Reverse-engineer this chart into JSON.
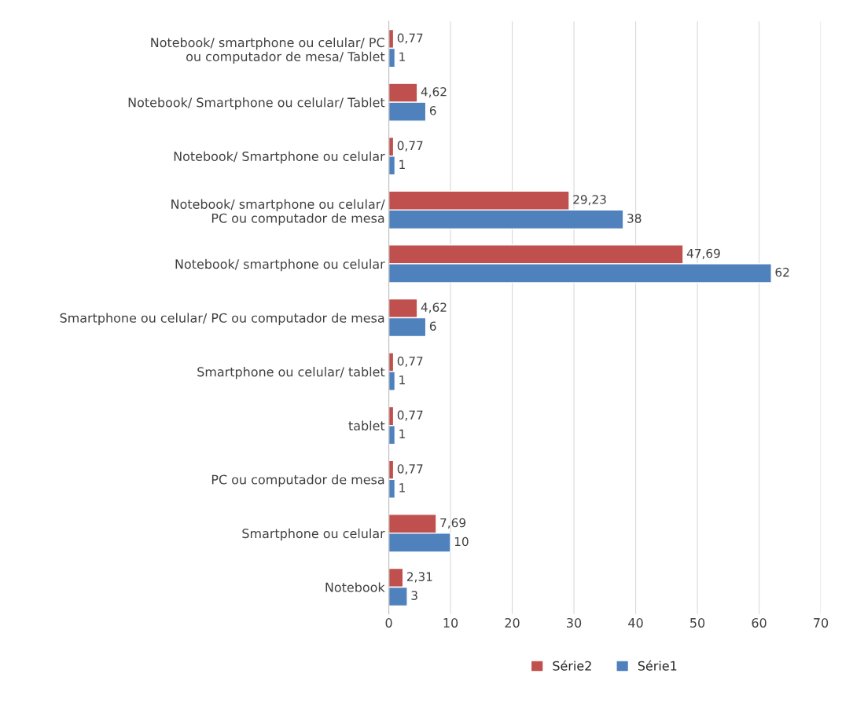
{
  "chart_data": {
    "type": "bar",
    "orientation": "horizontal",
    "categories": [
      "Notebook/ smartphone ou celular/ PC ou computador de mesa/ Tablet",
      "Notebook/ Smartphone ou celular/ Tablet",
      "Notebook/ Smartphone ou celular",
      "Notebook/ smartphone ou celular/ PC ou computador de mesa",
      "Notebook/ smartphone ou celular",
      "Smartphone ou celular/ PC ou computador de mesa",
      "Smartphone ou celular/ tablet",
      "tablet",
      "PC ou computador de mesa",
      "Smartphone ou celular",
      "Notebook"
    ],
    "series": [
      {
        "name": "Série2",
        "color": "#c0504d",
        "values": [
          0.77,
          4.62,
          0.77,
          29.23,
          47.69,
          4.62,
          0.77,
          0.77,
          0.77,
          7.69,
          2.31
        ],
        "value_labels": [
          "0,77",
          "4,62",
          "0,77",
          "29,23",
          "47,69",
          "4,62",
          "0,77",
          "0,77",
          "0,77",
          "7,69",
          "2,31"
        ]
      },
      {
        "name": "Série1",
        "color": "#4f81bd",
        "values": [
          1,
          6,
          1,
          38,
          62,
          6,
          1,
          1,
          1,
          10,
          3
        ],
        "value_labels": [
          "1",
          "6",
          "1",
          "38",
          "62",
          "6",
          "1",
          "1",
          "1",
          "10",
          "3"
        ]
      }
    ],
    "xlim": [
      0,
      70
    ],
    "xticks": [
      0,
      10,
      20,
      30,
      40,
      50,
      60,
      70
    ],
    "grid": "x",
    "legend": "bottom"
  }
}
